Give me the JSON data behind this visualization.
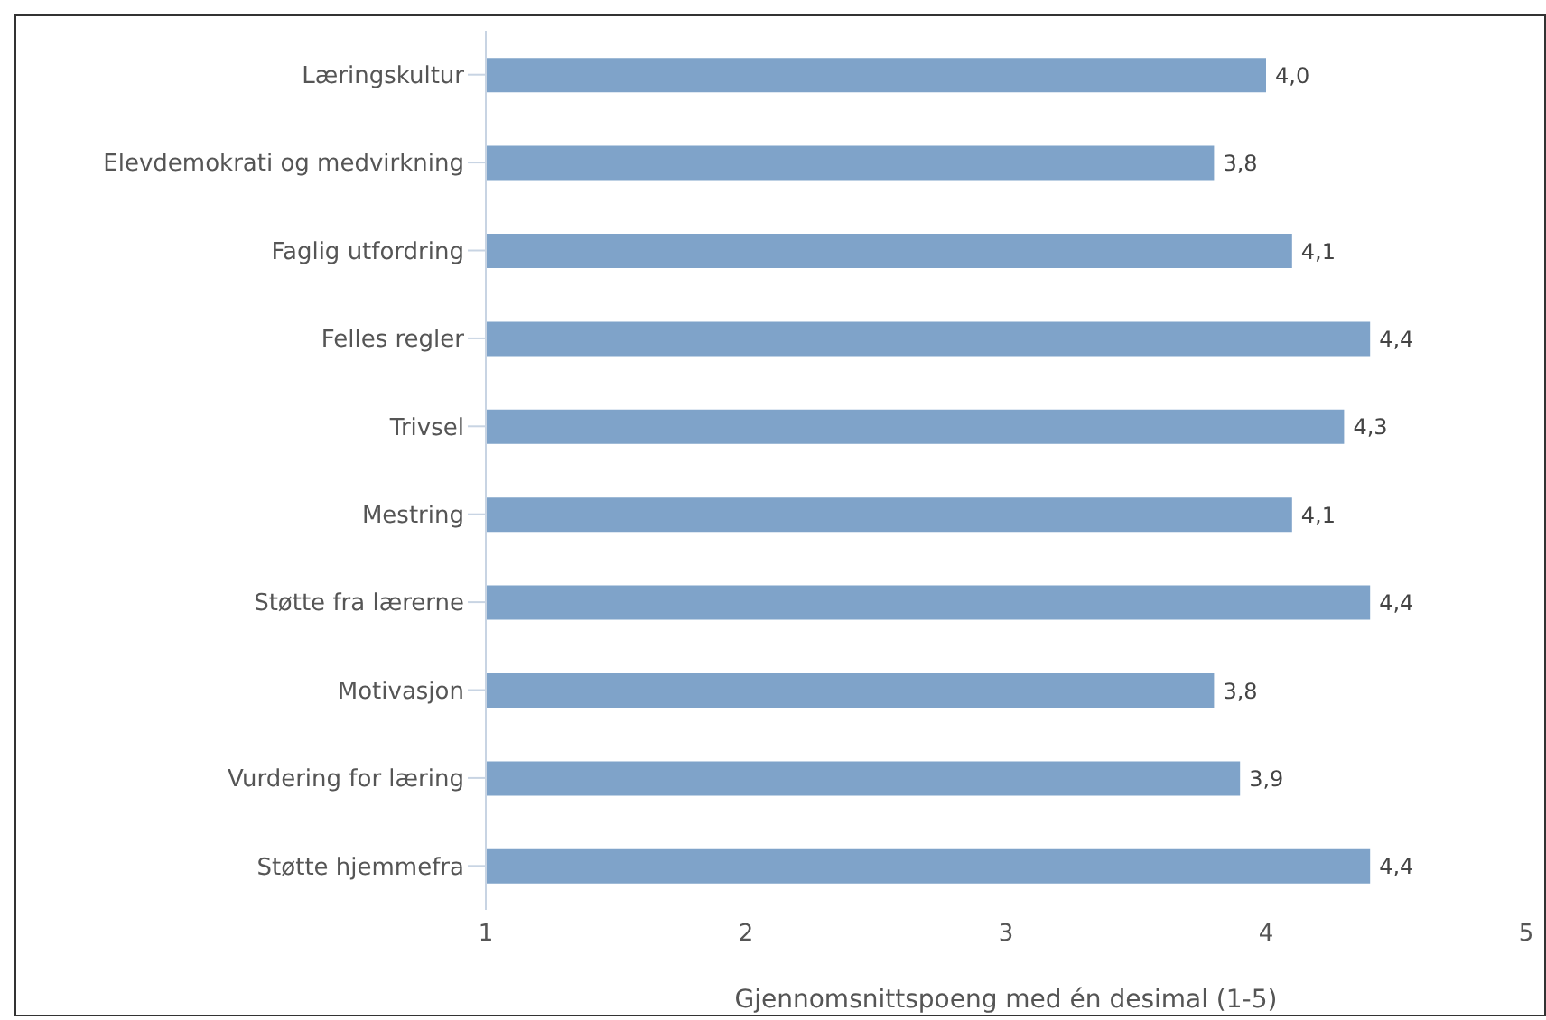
{
  "chart_data": {
    "type": "bar",
    "orientation": "horizontal",
    "xlabel": "Gjennomsnittspoeng med én desimal (1-5)",
    "categories": [
      "Læringskultur",
      "Elevdemokrati og medvirkning",
      "Faglig utfordring",
      "Felles regler",
      "Trivsel",
      "Mestring",
      "Støtte fra lærerne",
      "Motivasjon",
      "Vurdering for læring",
      "Støtte hjemmefra"
    ],
    "values": [
      4.0,
      3.8,
      4.1,
      4.4,
      4.3,
      4.1,
      4.4,
      3.8,
      3.9,
      4.4
    ],
    "value_labels": [
      "4,0",
      "3,8",
      "4,1",
      "4,4",
      "4,3",
      "4,1",
      "4,4",
      "3,8",
      "3,9",
      "4,4"
    ],
    "color": "#7fa3c9",
    "xlim": [
      1,
      5
    ],
    "xticks": [
      1,
      2,
      3,
      4,
      5
    ],
    "grid": false,
    "legend": false
  }
}
